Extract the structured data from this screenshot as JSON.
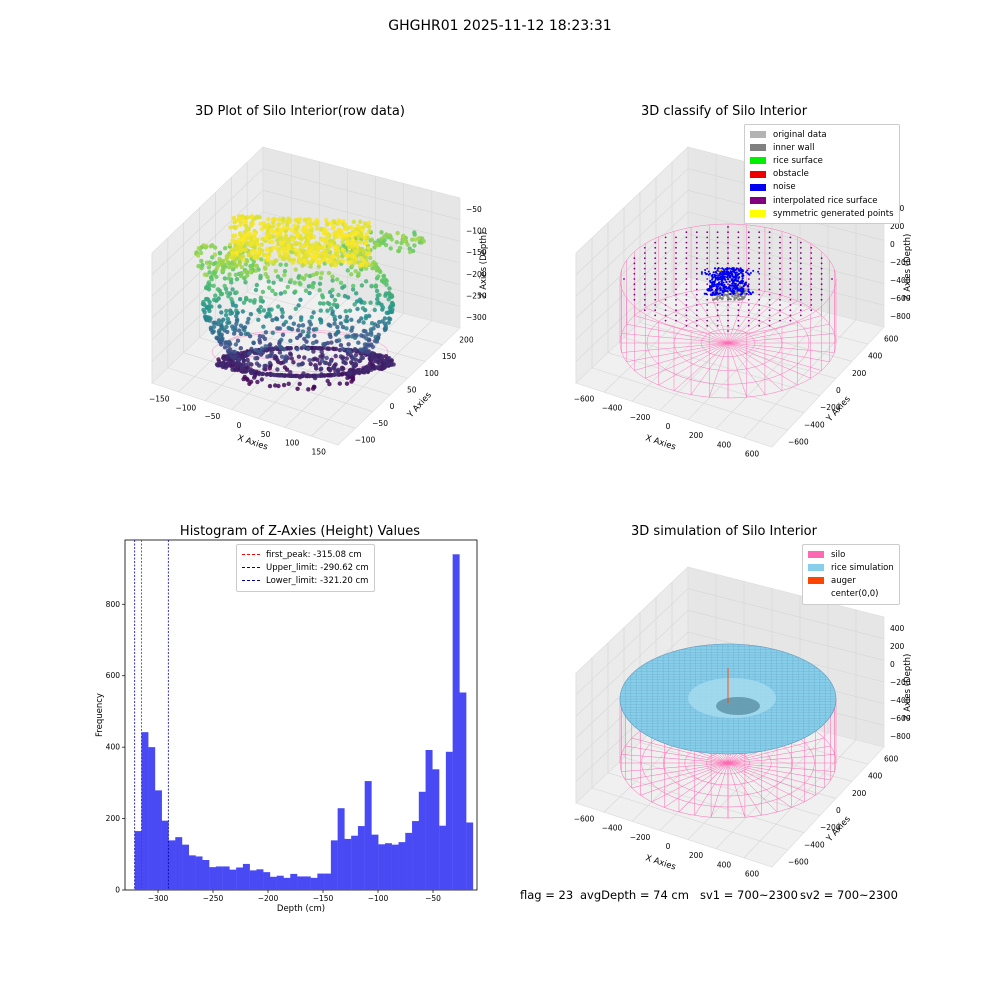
{
  "suptitle": "GHGHR01 2025-11-12 18:23:31",
  "footer": {
    "flag": "flag = 23",
    "avg_depth": "avgDepth = 74 cm",
    "sv1": "sv1 = 700~2300",
    "sv2": "sv2 = 700~2300"
  },
  "plot_raw": {
    "title": "3D Plot of Silo Interior(row data)",
    "xlabel": "X Axies",
    "ylabel": "Y Axies",
    "zlabel": "Z Axies (Depth)",
    "xticks": [
      "−150",
      "−100",
      "−50",
      "0",
      "50",
      "100",
      "150"
    ],
    "yticks": [
      "−100",
      "−50",
      "0",
      "50",
      "100",
      "150",
      "200"
    ],
    "zticks": [
      "−50",
      "−100",
      "−150",
      "−200",
      "−250",
      "−300"
    ]
  },
  "plot_classify": {
    "title": "3D classify of Silo Interior",
    "xlabel": "X Axies",
    "ylabel": "Y Axies",
    "zlabel": "Z Axies (Depth)",
    "xticks": [
      "−600",
      "−400",
      "−200",
      "0",
      "200",
      "400",
      "600"
    ],
    "yticks": [
      "−600",
      "−400",
      "−200",
      "0",
      "200",
      "400",
      "600"
    ],
    "zticks": [
      "400",
      "200",
      "0",
      "−200",
      "−400",
      "−600",
      "−800"
    ],
    "legend": [
      {
        "label": "original data",
        "color": "#b3b3b3"
      },
      {
        "label": "inner wall",
        "color": "#808080"
      },
      {
        "label": "rice surface",
        "color": "#00ee00"
      },
      {
        "label": "obstacle",
        "color": "#ee0000"
      },
      {
        "label": "noise",
        "color": "#0000ee"
      },
      {
        "label": "interpolated rice surface",
        "color": "#800080"
      },
      {
        "label": "symmetric generated points",
        "color": "#ffff00"
      }
    ]
  },
  "plot_sim": {
    "title": "3D simulation of Silo Interior",
    "xlabel": "X Axies",
    "ylabel": "Y Axies",
    "zlabel": "Z Axies (Depth)",
    "xticks": [
      "−600",
      "−400",
      "−200",
      "0",
      "200",
      "400",
      "600"
    ],
    "yticks": [
      "−600",
      "−400",
      "−200",
      "0",
      "200",
      "400",
      "600"
    ],
    "zticks": [
      "400",
      "200",
      "0",
      "−200",
      "−400",
      "−600",
      "−800"
    ],
    "legend": [
      {
        "label": "silo",
        "color": "#ff69b4"
      },
      {
        "label": "rice simulation",
        "color": "#87ceeb"
      },
      {
        "label": "auger",
        "color": "#ff4500"
      },
      {
        "label": "center(0,0)",
        "color": "#ffffff"
      }
    ]
  },
  "chart_data": [
    {
      "type": "histogram",
      "title": "Histogram of Z-Axies (Height) Values",
      "xlabel": "Depth (cm)",
      "ylabel": "Frequency",
      "xlim": [
        -330,
        -10
      ],
      "ylim": [
        0,
        980
      ],
      "xticks": [
        -300,
        -250,
        -200,
        -150,
        -100,
        -50
      ],
      "yticks": [
        0,
        200,
        400,
        600,
        800
      ],
      "bar_color": "#4a4af5",
      "bin_start": -321.2,
      "bin_width": 6.15,
      "values": [
        165,
        442,
        400,
        279,
        194,
        139,
        148,
        127,
        97,
        94,
        84,
        64,
        66,
        66,
        57,
        63,
        73,
        55,
        58,
        50,
        37,
        40,
        34,
        45,
        38,
        38,
        34,
        46,
        46,
        139,
        229,
        143,
        152,
        179,
        305,
        155,
        128,
        131,
        127,
        134,
        160,
        193,
        275,
        392,
        338,
        180,
        387,
        940,
        553,
        189
      ],
      "vlines": [
        {
          "label": "first_peak: -315.08 cm",
          "x": -315.08,
          "color": "#ff0000"
        },
        {
          "label": "Upper_limit: -290.62 cm",
          "x": -290.62,
          "color": "#0000aa"
        },
        {
          "label": "Lower_limit: -321.20 cm",
          "x": -321.2,
          "color": "#0000aa"
        }
      ]
    }
  ]
}
